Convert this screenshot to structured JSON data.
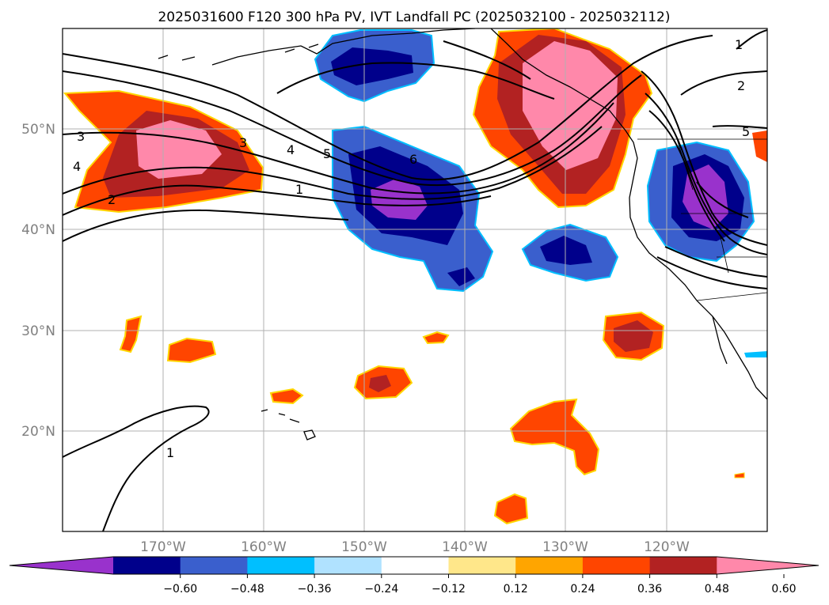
{
  "title": "2025031600 F120 300 hPa PV, IVT Landfall PC (2025032100 - 2025032112)",
  "lat_labels": [
    "20°N",
    "30°N",
    "40°N",
    "50°N"
  ],
  "lon_labels": [
    "170°W",
    "160°W",
    "150°W",
    "140°W",
    "130°W",
    "120°W"
  ],
  "contour_labels": [
    "3",
    "3",
    "4",
    "5",
    "6",
    "1",
    "2",
    "4",
    "1",
    "2",
    "1",
    "5"
  ],
  "colorbar": {
    "ticks": [
      "−0.60",
      "−0.48",
      "−0.36",
      "−0.24",
      "−0.12",
      "0.12",
      "0.24",
      "0.36",
      "0.48",
      "0.60"
    ],
    "colors": [
      "#9932cc",
      "#00008b",
      "#3a5fcd",
      "#00bfff",
      "#b0e2ff",
      "#ffffff",
      "#ffe78a",
      "#ffa500",
      "#ff4500",
      "#b22222",
      "#ff88aa"
    ]
  }
}
